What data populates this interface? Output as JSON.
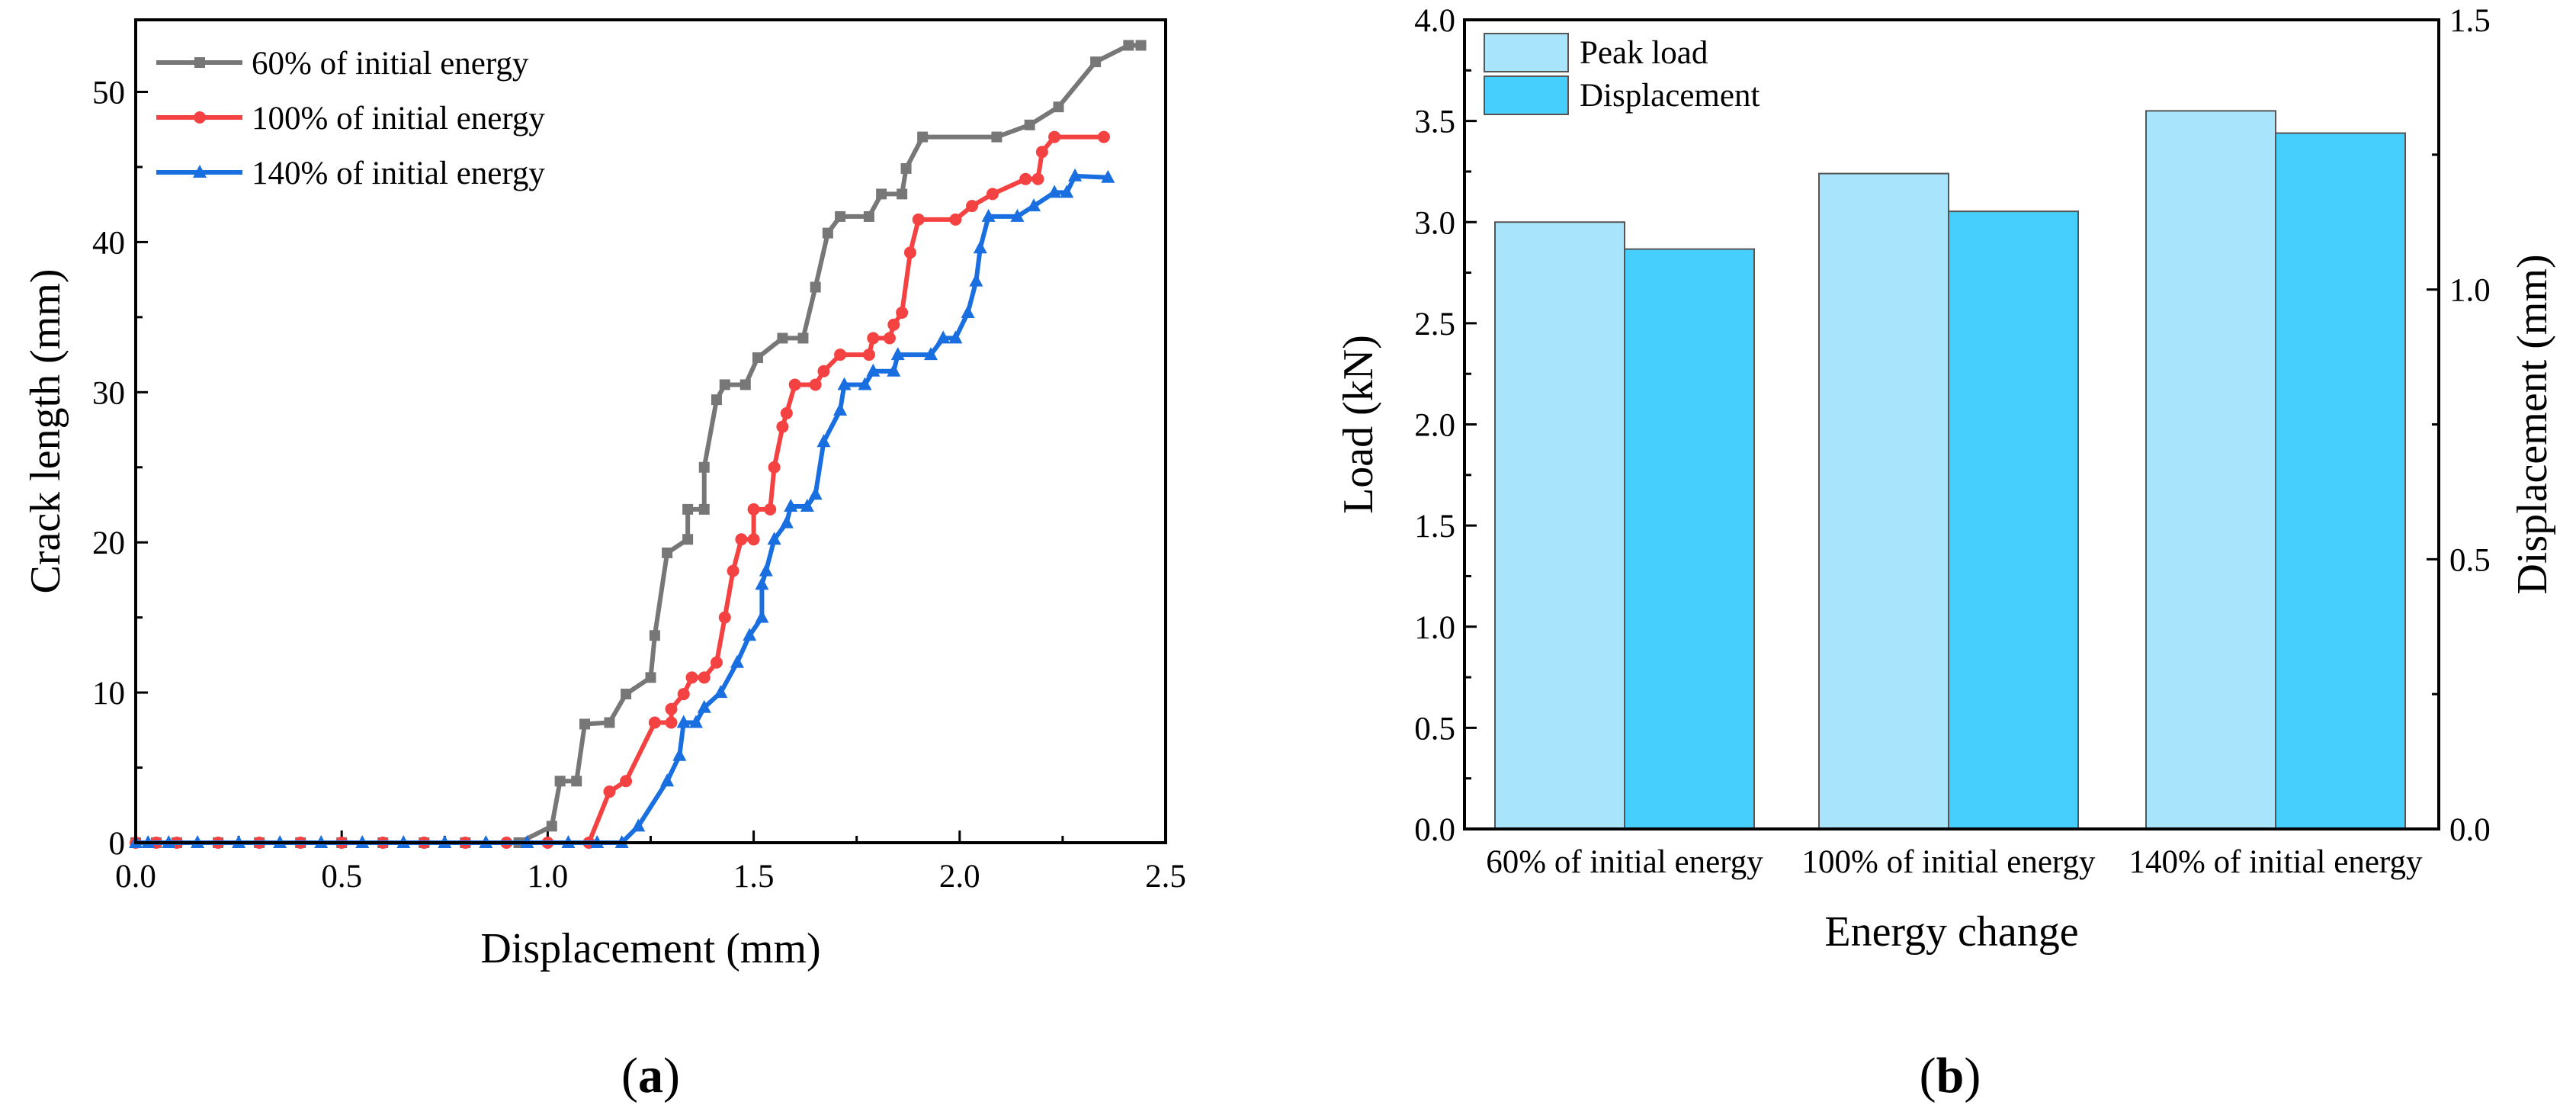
{
  "chart_data": [
    {
      "type": "line",
      "panel_label": "(a)",
      "panel_letter": "a",
      "xlabel": "Displacement (mm)",
      "ylabel": "Crack length (mm)",
      "xlim": [
        0,
        2.5
      ],
      "ylim": [
        0,
        54.8
      ],
      "xticks": [
        "0.0",
        "0.5",
        "1.0",
        "1.5",
        "2.0",
        "2.5"
      ],
      "yticks": [
        "0",
        "10",
        "20",
        "30",
        "40",
        "50"
      ],
      "legend_position": "top-left",
      "grid": false,
      "series": [
        {
          "name": "60% of initial energy",
          "color": "#777777",
          "marker": "square",
          "x": [
            0,
            0.05,
            0.1,
            0.2,
            0.3,
            0.4,
            0.5,
            0.6,
            0.7,
            0.8,
            0.93,
            1.01,
            1.03,
            1.07,
            1.09,
            1.15,
            1.19,
            1.25,
            1.26,
            1.29,
            1.34,
            1.34,
            1.38,
            1.38,
            1.41,
            1.43,
            1.48,
            1.51,
            1.57,
            1.62,
            1.65,
            1.68,
            1.71,
            1.78,
            1.81,
            1.86,
            1.87,
            1.91,
            2.09,
            2.17,
            2.24,
            2.33,
            2.41,
            2.44
          ],
          "y": [
            0,
            0,
            0,
            0,
            0,
            0,
            0,
            0,
            0,
            0,
            0,
            1.1,
            4.1,
            4.1,
            7.9,
            8.0,
            9.9,
            11,
            13.8,
            19.3,
            20.2,
            22.2,
            22.2,
            25,
            29.5,
            30.5,
            30.5,
            32.3,
            33.6,
            33.6,
            37,
            40.6,
            41.7,
            41.7,
            43.2,
            43.2,
            44.9,
            47,
            47,
            47.8,
            49,
            52,
            53.1,
            53.1
          ]
        },
        {
          "name": "100% of initial energy",
          "color": "#f44242",
          "marker": "circle",
          "x": [
            0,
            0.05,
            0.1,
            0.2,
            0.3,
            0.4,
            0.5,
            0.6,
            0.7,
            0.8,
            0.9,
            1.0,
            1.1,
            1.15,
            1.19,
            1.26,
            1.3,
            1.3,
            1.33,
            1.35,
            1.38,
            1.41,
            1.43,
            1.45,
            1.47,
            1.5,
            1.5,
            1.54,
            1.55,
            1.57,
            1.58,
            1.6,
            1.65,
            1.67,
            1.71,
            1.78,
            1.79,
            1.83,
            1.84,
            1.86,
            1.88,
            1.9,
            1.99,
            2.03,
            2.08,
            2.16,
            2.19,
            2.2,
            2.23,
            2.35
          ],
          "y": [
            0,
            0,
            0,
            0,
            0,
            0,
            0,
            0,
            0,
            0,
            0,
            0,
            0,
            3.4,
            4.1,
            8.0,
            8.0,
            8.9,
            9.9,
            11,
            11,
            12,
            15,
            18.1,
            20.2,
            20.2,
            22.2,
            22.2,
            25,
            27.7,
            28.6,
            30.5,
            30.5,
            31.4,
            32.5,
            32.5,
            33.6,
            33.6,
            34.5,
            35.3,
            39.3,
            41.5,
            41.5,
            42.4,
            43.2,
            44.2,
            44.2,
            46,
            47,
            47
          ]
        },
        {
          "name": "140% of initial energy",
          "color": "#1a6fe0",
          "marker": "triangle",
          "x": [
            0,
            0.03,
            0.08,
            0.15,
            0.25,
            0.35,
            0.45,
            0.55,
            0.65,
            0.75,
            0.85,
            0.95,
            1.05,
            1.12,
            1.18,
            1.22,
            1.29,
            1.32,
            1.33,
            1.36,
            1.38,
            1.42,
            1.46,
            1.49,
            1.52,
            1.52,
            1.53,
            1.55,
            1.58,
            1.59,
            1.63,
            1.65,
            1.67,
            1.71,
            1.72,
            1.77,
            1.79,
            1.84,
            1.85,
            1.93,
            1.96,
            1.99,
            2.02,
            2.04,
            2.05,
            2.07,
            2.14,
            2.18,
            2.23,
            2.26,
            2.28,
            2.36
          ],
          "y": [
            0,
            0,
            0,
            0,
            0,
            0,
            0,
            0,
            0,
            0,
            0,
            0,
            0,
            0,
            0,
            1.1,
            4.1,
            5.8,
            8,
            8,
            9,
            10,
            12,
            13.8,
            15,
            17.2,
            18.1,
            20.2,
            21.3,
            22.4,
            22.4,
            23.2,
            26.7,
            28.8,
            30.5,
            30.5,
            31.4,
            31.4,
            32.5,
            32.5,
            33.6,
            33.6,
            35.3,
            37.4,
            39.6,
            41.7,
            41.7,
            42.4,
            43.3,
            43.3,
            44.4,
            44.3
          ]
        }
      ]
    },
    {
      "type": "bar",
      "panel_label": "(b)",
      "panel_letter": "b",
      "xlabel": "Energy change",
      "ylabel": "Load (kN)",
      "ylabel_right": "Displacement (mm)",
      "categories": [
        "60% of initial energy",
        "100% of initial energy",
        "140% of initial energy"
      ],
      "ylim": [
        0,
        4.0
      ],
      "ylim_right": [
        0,
        1.5
      ],
      "yticks": [
        "0.0",
        "0.5",
        "1.0",
        "1.5",
        "2.0",
        "2.5",
        "3.0",
        "3.5",
        "4.0"
      ],
      "yticks_right": [
        "0.0",
        "0.5",
        "1.0",
        "1.5"
      ],
      "legend_position": "top-left",
      "series": [
        {
          "name": "Peak load",
          "axis": "left",
          "color": "#a8e4fc",
          "values": [
            3.0,
            3.24,
            3.55
          ]
        },
        {
          "name": "Displacement",
          "axis": "right",
          "color": "#46cffc",
          "values": [
            1.075,
            1.145,
            1.29
          ]
        }
      ]
    }
  ]
}
